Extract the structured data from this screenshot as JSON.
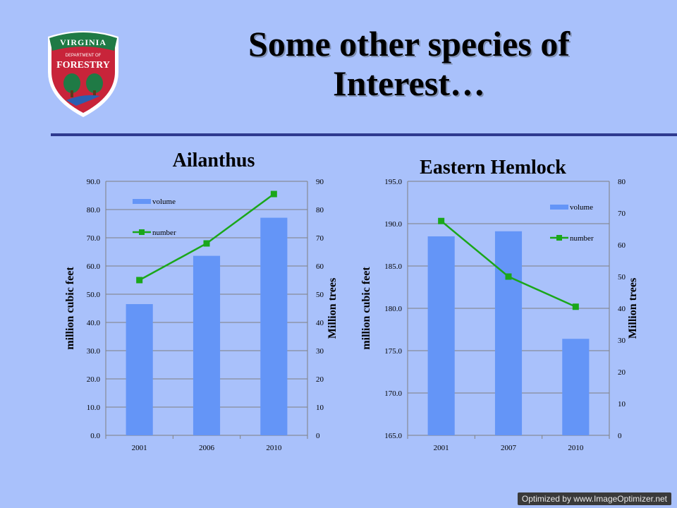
{
  "slide": {
    "title_line1": "Some other species of",
    "title_line2": "Interest…",
    "watermark": "Optimized by www.ImageOptimizer.net"
  },
  "logo": {
    "top_text": "VIRGINIA",
    "middle_text": "DEPARTMENT OF",
    "main_text": "FORESTRY",
    "colors": {
      "shield": "#c8243a",
      "banner": "#1f7a45",
      "border": "#ffffff"
    }
  },
  "colors": {
    "bar": "#6495f7",
    "line": "#1aa71a",
    "gridline": "#808080"
  },
  "chart_data": [
    {
      "type": "bar",
      "title": "Ailanthus",
      "categories": [
        "2001",
        "2006",
        "2010"
      ],
      "series": [
        {
          "name": "volume",
          "type": "bar",
          "axis": "left",
          "values": [
            46.5,
            63.6,
            77.1
          ]
        },
        {
          "name": "number",
          "type": "line",
          "axis": "right",
          "values": [
            55,
            68,
            85.5
          ]
        }
      ],
      "ylabel_left": "million cubic feet",
      "ylabel_right": "Million trees",
      "ylim_left": [
        0,
        90
      ],
      "ylim_right": [
        0,
        90
      ],
      "yticks_left": [
        "0.0",
        "10.0",
        "20.0",
        "30.0",
        "40.0",
        "50.0",
        "60.0",
        "70.0",
        "80.0",
        "90.0"
      ],
      "yticks_right": [
        "0",
        "10",
        "20",
        "30",
        "40",
        "50",
        "60",
        "70",
        "80",
        "90"
      ],
      "grid": true,
      "legend_position": "top-left"
    },
    {
      "type": "bar",
      "title": "Eastern Hemlock",
      "categories": [
        "2001",
        "2007",
        "2010"
      ],
      "series": [
        {
          "name": "volume",
          "type": "bar",
          "axis": "left",
          "values": [
            188.5,
            189.1,
            176.4
          ]
        },
        {
          "name": "number",
          "type": "line",
          "axis": "right",
          "values": [
            67.5,
            50,
            40.5
          ]
        }
      ],
      "ylabel_left": "million cubic feet",
      "ylabel_right": "Million trees",
      "ylim_left": [
        165,
        195
      ],
      "ylim_right": [
        0,
        80
      ],
      "yticks_left": [
        "165.0",
        "170.0",
        "175.0",
        "180.0",
        "185.0",
        "190.0",
        "195.0"
      ],
      "yticks_right": [
        "0",
        "10",
        "20",
        "30",
        "40",
        "50",
        "60",
        "70",
        "80"
      ],
      "grid": true,
      "legend_position": "top-right"
    }
  ]
}
